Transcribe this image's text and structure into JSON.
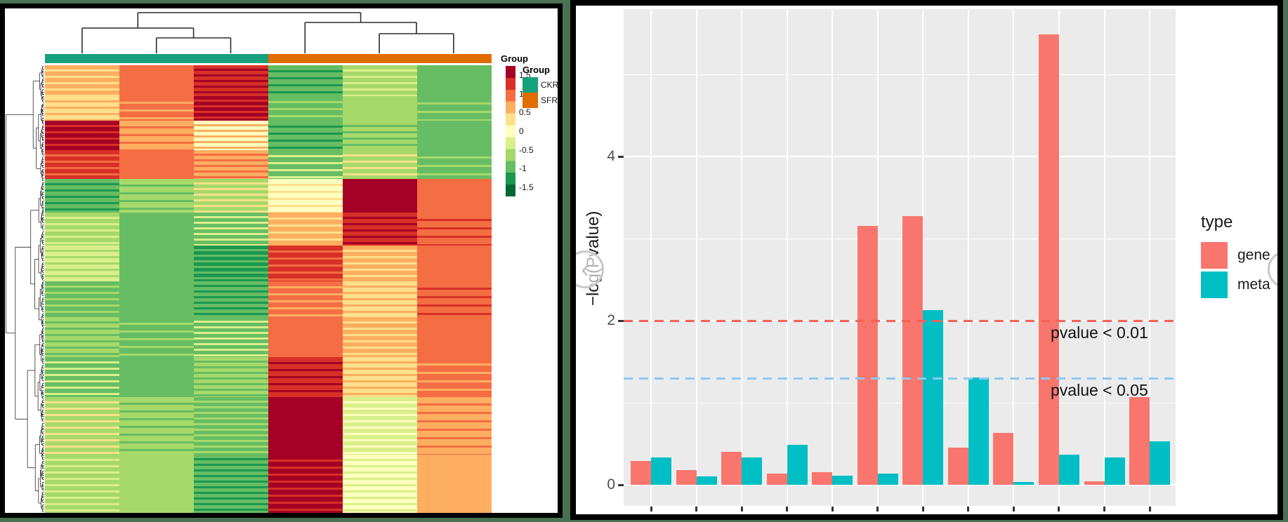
{
  "carousel": {
    "prev_icon": "‹",
    "next_icon": "›"
  },
  "chart_data": [
    {
      "type": "heatmap",
      "title": "",
      "columns": 6,
      "rows_approx": 160,
      "column_groups": [
        {
          "name": "CKR",
          "color": "#17A07C",
          "columns": [
            1,
            2,
            3
          ]
        },
        {
          "name": "SFR",
          "color": "#E06D00",
          "columns": [
            4,
            5,
            6
          ]
        }
      ],
      "legend_title": "Group",
      "scale": {
        "title": "Group",
        "ticks": [
          "1.5",
          "1",
          "0.5",
          "0",
          "-0.5",
          "-1",
          "-1.5"
        ],
        "range": [
          1.75,
          -1.75
        ],
        "palette": [
          "#A50026",
          "#D73027",
          "#F46D43",
          "#FDAE61",
          "#FEE08B",
          "#FFFFBF",
          "#D9EF8B",
          "#A6D96A",
          "#66BD63",
          "#1A9850",
          "#006837"
        ]
      },
      "bands": [
        {
          "f": 0.07,
          "cells": [
            {
              "c": "#FDAE61",
              "s": "#FEE08B"
            },
            {
              "c": "#F46D43",
              "s": null
            },
            {
              "c": "#D73027",
              "s": "#A50026"
            },
            {
              "c": "#66BD63",
              "s": "#1A9850"
            },
            {
              "c": "#A6D96A",
              "s": "#D9EF8B"
            },
            {
              "c": "#66BD63",
              "s": null
            }
          ]
        },
        {
          "f": 0.055,
          "cells": [
            {
              "c": "#FEE08B",
              "s": "#FDAE61"
            },
            {
              "c": "#F46D43",
              "s": "#FDAE61"
            },
            {
              "c": "#A50026",
              "s": "#D73027"
            },
            {
              "c": "#66BD63",
              "s": "#A6D96A"
            },
            {
              "c": "#A6D96A",
              "s": null
            },
            {
              "c": "#66BD63",
              "s": "#A6D96A"
            }
          ]
        },
        {
          "f": 0.065,
          "cells": [
            {
              "c": "#A50026",
              "s": "#D73027"
            },
            {
              "c": "#FDAE61",
              "s": "#F46D43"
            },
            {
              "c": "#FFFFBF",
              "s": "#FDAE61"
            },
            {
              "c": "#66BD63",
              "s": "#1A9850"
            },
            {
              "c": "#A6D96A",
              "s": "#66BD63"
            },
            {
              "c": "#66BD63",
              "s": null
            }
          ]
        },
        {
          "f": 0.065,
          "cells": [
            {
              "c": "#D73027",
              "s": "#F46D43"
            },
            {
              "c": "#F46D43",
              "s": null
            },
            {
              "c": "#FDAE61",
              "s": "#F46D43"
            },
            {
              "c": "#66BD63",
              "s": "#D9EF8B"
            },
            {
              "c": "#A6D96A",
              "s": "#FEE08B"
            },
            {
              "c": "#66BD63",
              "s": "#A6D96A"
            }
          ]
        },
        {
          "f": 0.075,
          "cells": [
            {
              "c": "#66BD63",
              "s": "#1A9850"
            },
            {
              "c": "#A6D96A",
              "s": "#66BD63"
            },
            {
              "c": "#A6D96A",
              "s": "#FEE08B"
            },
            {
              "c": "#FFFFBF",
              "s": "#FEE08B"
            },
            {
              "c": "#A50026",
              "s": null
            },
            {
              "c": "#F46D43",
              "s": null
            }
          ]
        },
        {
          "f": 0.075,
          "cells": [
            {
              "c": "#A6D96A",
              "s": "#D9EF8B"
            },
            {
              "c": "#66BD63",
              "s": null
            },
            {
              "c": "#66BD63",
              "s": "#D9EF8B"
            },
            {
              "c": "#FDAE61",
              "s": "#FEE08B"
            },
            {
              "c": "#D73027",
              "s": "#A50026"
            },
            {
              "c": "#F46D43",
              "s": "#D73027"
            }
          ]
        },
        {
          "f": 0.08,
          "cells": [
            {
              "c": "#D9EF8B",
              "s": "#A6D96A"
            },
            {
              "c": "#66BD63",
              "s": null
            },
            {
              "c": "#1A9850",
              "s": "#66BD63"
            },
            {
              "c": "#D73027",
              "s": "#F46D43"
            },
            {
              "c": "#FDAE61",
              "s": "#FEE08B"
            },
            {
              "c": "#F46D43",
              "s": null
            }
          ]
        },
        {
          "f": 0.08,
          "cells": [
            {
              "c": "#66BD63",
              "s": "#A6D96A"
            },
            {
              "c": "#66BD63",
              "s": null
            },
            {
              "c": "#66BD63",
              "s": "#1A9850"
            },
            {
              "c": "#F46D43",
              "s": "#FDAE61"
            },
            {
              "c": "#FEE08B",
              "s": "#FDAE61"
            },
            {
              "c": "#F46D43",
              "s": "#D73027"
            }
          ]
        },
        {
          "f": 0.09,
          "cells": [
            {
              "c": "#A6D96A",
              "s": "#66BD63"
            },
            {
              "c": "#66BD63",
              "s": "#A6D96A"
            },
            {
              "c": "#66BD63",
              "s": "#D9EF8B"
            },
            {
              "c": "#F46D43",
              "s": null
            },
            {
              "c": "#FDAE61",
              "s": "#FEE08B"
            },
            {
              "c": "#F46D43",
              "s": null
            }
          ]
        },
        {
          "f": 0.09,
          "cells": [
            {
              "c": "#66BD63",
              "s": "#D9EF8B"
            },
            {
              "c": "#66BD63",
              "s": null
            },
            {
              "c": "#A6D96A",
              "s": "#66BD63"
            },
            {
              "c": "#D73027",
              "s": "#A50026"
            },
            {
              "c": "#FEE08B",
              "s": "#FDAE61"
            },
            {
              "c": "#F46D43",
              "s": "#FDAE61"
            }
          ]
        },
        {
          "f": 0.13,
          "cells": [
            {
              "c": "#A6D96A",
              "s": "#FEE08B"
            },
            {
              "c": "#A6D96A",
              "s": "#66BD63"
            },
            {
              "c": "#66BD63",
              "s": "#A6D96A"
            },
            {
              "c": "#A50026",
              "s": null
            },
            {
              "c": "#D9EF8B",
              "s": "#FFFFBF"
            },
            {
              "c": "#FDAE61",
              "s": "#F46D43"
            }
          ]
        },
        {
          "f": 0.13,
          "cells": [
            {
              "c": "#A6D96A",
              "s": "#D9EF8B"
            },
            {
              "c": "#A6D96A",
              "s": null
            },
            {
              "c": "#66BD63",
              "s": "#1A9850"
            },
            {
              "c": "#A50026",
              "s": "#D73027"
            },
            {
              "c": "#FFFFBF",
              "s": "#D9EF8B"
            },
            {
              "c": "#FDAE61",
              "s": null
            }
          ]
        }
      ]
    },
    {
      "type": "bar",
      "title": "",
      "xlabel": "",
      "ylabel": "−log(Pvalue)",
      "categories": [
        "",
        "",
        "",
        "",
        "",
        "",
        "",
        "",
        "",
        "",
        "",
        ""
      ],
      "series": [
        {
          "name": "gene",
          "color": "#F8766D",
          "values": [
            0.29,
            0.18,
            0.4,
            0.14,
            0.15,
            3.15,
            3.27,
            0.45,
            0.63,
            5.49,
            0.04,
            1.07
          ]
        },
        {
          "name": "meta",
          "color": "#00BFC4",
          "values": [
            0.33,
            0.1,
            0.33,
            0.49,
            0.11,
            0.14,
            2.13,
            1.31,
            0.03,
            0.37,
            0.33,
            0.53
          ]
        }
      ],
      "yticks": [
        "0",
        "2",
        "4"
      ],
      "ylim": [
        0,
        5.8
      ],
      "grid_values": [
        0,
        1,
        2,
        3,
        4,
        5
      ],
      "hlines": [
        {
          "y": 2.0,
          "color": "#F4625A",
          "style": "dashed",
          "label": "pvalue < 0.01"
        },
        {
          "y": 1.3,
          "color": "#8FC8EF",
          "style": "dashed",
          "label": "pvalue < 0.05"
        }
      ],
      "legend": {
        "title": "type",
        "position": "right"
      },
      "panel_bg": "#EBEBEB",
      "grid_on": true
    }
  ]
}
